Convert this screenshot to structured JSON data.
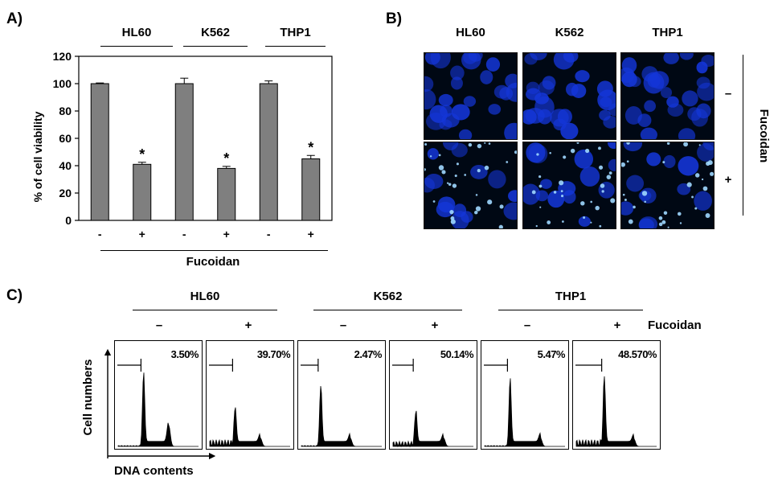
{
  "panelA": {
    "label": "A)",
    "groups": [
      "HL60",
      "K562",
      "THP1"
    ],
    "treatment_label": "Fucoidan",
    "chart_data": {
      "type": "bar",
      "ylabel": "% of cell viability",
      "xlabel": "Fucoidan",
      "ylim": [
        0,
        120
      ],
      "yticks": [
        0,
        20,
        40,
        60,
        80,
        100,
        120
      ],
      "categories": [
        "-",
        "+",
        "-",
        "+",
        "-",
        "+"
      ],
      "cell_lines": [
        "HL60",
        "HL60",
        "K562",
        "K562",
        "THP1",
        "THP1"
      ],
      "values": [
        100,
        41,
        100,
        38,
        100,
        45
      ],
      "errors": [
        0.5,
        1.5,
        4,
        1.5,
        2,
        2.5
      ],
      "significance": [
        "",
        "*",
        "",
        "*",
        "",
        "*"
      ],
      "bar_color": "#7f7f7f",
      "grid": false
    }
  },
  "panelB": {
    "label": "B)",
    "columns": [
      "HL60",
      "K562",
      "THP1"
    ],
    "rows": [
      "–",
      "+"
    ],
    "side_label": "Fucoidan",
    "stain_color": "#1436d8"
  },
  "panelC": {
    "label": "C)",
    "groups": [
      "HL60",
      "K562",
      "THP1"
    ],
    "treatment_label": "Fucoidan",
    "signs": [
      "–",
      "+",
      "–",
      "+",
      "–",
      "+"
    ],
    "percents": [
      "3.50%",
      "39.70%",
      "2.47%",
      "50.14%",
      "5.47%",
      "48.570%"
    ],
    "ylabel": "Cell numbers",
    "xlabel": "DNA contents"
  }
}
